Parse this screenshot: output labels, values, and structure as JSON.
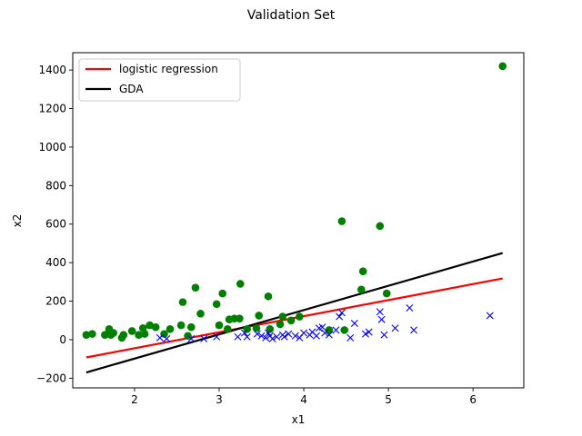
{
  "chart_data": {
    "type": "scatter",
    "title": "Validation Set",
    "xlabel": "x1",
    "ylabel": "x2",
    "xlim": [
      1.27,
      6.6
    ],
    "ylim": [
      -250,
      1490
    ],
    "xticks": [
      2,
      3,
      4,
      5,
      6
    ],
    "yticks": [
      -200,
      0,
      200,
      400,
      600,
      800,
      1000,
      1200,
      1400
    ],
    "legend_position": "top-left",
    "colors": {
      "class_circle": "#008000",
      "class_x": "#0000ff",
      "logistic": "#ff0000",
      "gda": "#000000"
    },
    "series": [
      {
        "marker": "circle",
        "points": [
          [
            1.43,
            25
          ],
          [
            1.5,
            30
          ],
          [
            1.65,
            25
          ],
          [
            1.7,
            55
          ],
          [
            1.75,
            35
          ],
          [
            1.72,
            25
          ],
          [
            1.85,
            10
          ],
          [
            1.87,
            25
          ],
          [
            1.97,
            45
          ],
          [
            2.05,
            25
          ],
          [
            2.1,
            60
          ],
          [
            2.12,
            30
          ],
          [
            2.18,
            75
          ],
          [
            2.25,
            65
          ],
          [
            2.35,
            30
          ],
          [
            2.42,
            55
          ],
          [
            2.55,
            75
          ],
          [
            2.57,
            195
          ],
          [
            2.63,
            20
          ],
          [
            2.67,
            65
          ],
          [
            2.72,
            270
          ],
          [
            2.78,
            135
          ],
          [
            2.97,
            185
          ],
          [
            3.0,
            75
          ],
          [
            3.04,
            240
          ],
          [
            3.1,
            55
          ],
          [
            3.12,
            105
          ],
          [
            3.18,
            110
          ],
          [
            3.24,
            110
          ],
          [
            3.25,
            290
          ],
          [
            3.33,
            55
          ],
          [
            3.44,
            60
          ],
          [
            3.47,
            125
          ],
          [
            3.58,
            225
          ],
          [
            3.6,
            55
          ],
          [
            3.72,
            80
          ],
          [
            3.75,
            120
          ],
          [
            3.85,
            100
          ],
          [
            3.95,
            120
          ],
          [
            4.3,
            50
          ],
          [
            4.45,
            615
          ],
          [
            4.48,
            50
          ],
          [
            4.68,
            260
          ],
          [
            4.7,
            355
          ],
          [
            4.9,
            590
          ],
          [
            4.98,
            240
          ],
          [
            6.35,
            1420
          ]
        ]
      },
      {
        "marker": "x",
        "points": [
          [
            2.3,
            10
          ],
          [
            2.38,
            5
          ],
          [
            2.67,
            5
          ],
          [
            2.82,
            5
          ],
          [
            2.97,
            15
          ],
          [
            3.22,
            15
          ],
          [
            3.3,
            35
          ],
          [
            3.33,
            15
          ],
          [
            3.45,
            30
          ],
          [
            3.5,
            20
          ],
          [
            3.55,
            10
          ],
          [
            3.58,
            35
          ],
          [
            3.6,
            20
          ],
          [
            3.63,
            5
          ],
          [
            3.68,
            15
          ],
          [
            3.75,
            25
          ],
          [
            3.77,
            15
          ],
          [
            3.82,
            30
          ],
          [
            3.9,
            20
          ],
          [
            3.95,
            10
          ],
          [
            4.0,
            35
          ],
          [
            4.07,
            25
          ],
          [
            4.1,
            40
          ],
          [
            4.15,
            20
          ],
          [
            4.18,
            60
          ],
          [
            4.22,
            65
          ],
          [
            4.25,
            35
          ],
          [
            4.3,
            25
          ],
          [
            4.38,
            50
          ],
          [
            4.42,
            120
          ],
          [
            4.45,
            140
          ],
          [
            4.55,
            10
          ],
          [
            4.6,
            85
          ],
          [
            4.73,
            30
          ],
          [
            4.77,
            40
          ],
          [
            4.9,
            145
          ],
          [
            4.92,
            105
          ],
          [
            4.95,
            25
          ],
          [
            5.08,
            60
          ],
          [
            5.25,
            165
          ],
          [
            5.3,
            50
          ],
          [
            6.2,
            125
          ]
        ]
      }
    ],
    "lines": [
      {
        "name": "logistic regression",
        "x": [
          1.43,
          6.35
        ],
        "y": [
          -92,
          318
        ]
      },
      {
        "name": "GDA",
        "x": [
          1.43,
          6.35
        ],
        "y": [
          -170,
          450
        ]
      }
    ]
  }
}
